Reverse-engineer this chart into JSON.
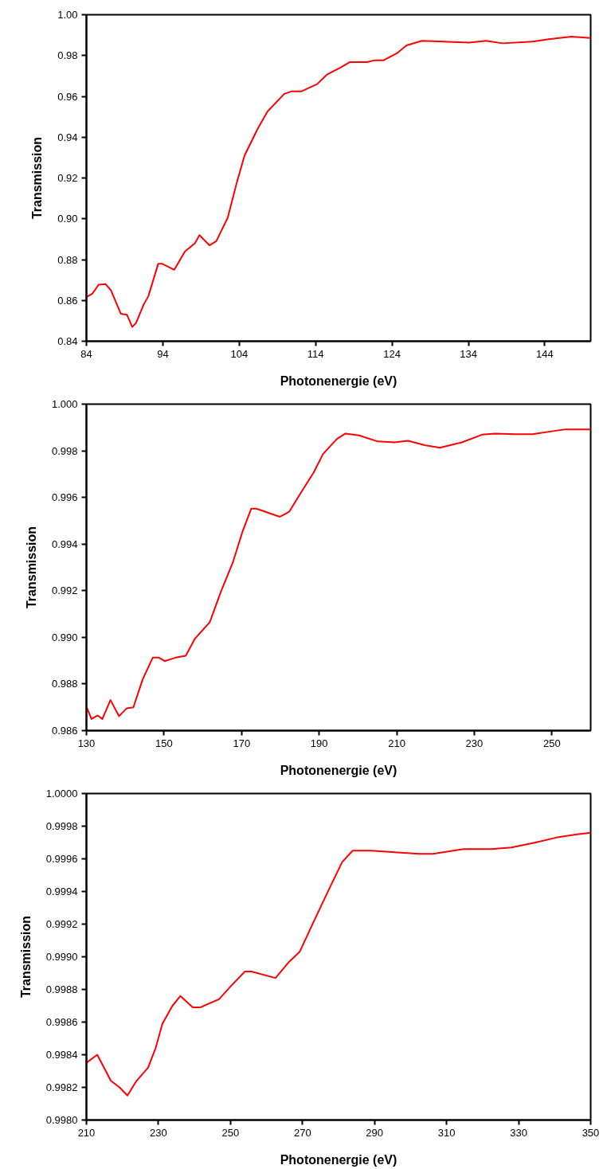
{
  "chart_data": [
    {
      "type": "line",
      "xlabel": "Photonenergie (eV)",
      "ylabel": "Transmission",
      "grid": false,
      "marker": "none",
      "line_style": "solid",
      "xlim": [
        84,
        150
      ],
      "xticks": [
        84,
        94,
        104,
        114,
        124,
        134,
        144
      ],
      "ylim": [
        0.84,
        1.0
      ],
      "yticks": [
        {
          "value": 0.84,
          "label": "0.84"
        },
        {
          "value": 0.86,
          "label": "0.86"
        },
        {
          "value": 0.88,
          "label": "0.88"
        },
        {
          "value": 0.9,
          "label": "0.90"
        },
        {
          "value": 0.92,
          "label": "0.92"
        },
        {
          "value": 0.94,
          "label": "0.94"
        },
        {
          "value": 0.96,
          "label": "0.96"
        },
        {
          "value": 0.98,
          "label": "0.98"
        },
        {
          "value": 1.0,
          "label": "1.00"
        }
      ],
      "series": [
        {
          "color": "#ff0000",
          "x": [
            84,
            84.8,
            85.6,
            86.5,
            87.2,
            88.5,
            89.3,
            90.0,
            90.5,
            91.5,
            92.1,
            93.4,
            93.9,
            95.5,
            96.9,
            98.2,
            98.8,
            100.1,
            101.0,
            102.5,
            103.7,
            104.7,
            106.4,
            107.7,
            109.9,
            110.8,
            112.1,
            114.2,
            115.5,
            117.2,
            118.5,
            120.7,
            121.8,
            122.9,
            124.6,
            125.9,
            127.9,
            130.7,
            134.1,
            136.3,
            138.5,
            142.4,
            144.5,
            147.5,
            150
          ],
          "values": [
            0.8616,
            0.8634,
            0.8677,
            0.868,
            0.865,
            0.8535,
            0.853,
            0.847,
            0.849,
            0.858,
            0.862,
            0.878,
            0.878,
            0.875,
            0.884,
            0.888,
            0.892,
            0.887,
            0.889,
            0.9006,
            0.918,
            0.931,
            0.944,
            0.9526,
            0.9612,
            0.9624,
            0.9624,
            0.966,
            0.9707,
            0.974,
            0.9768,
            0.9768,
            0.9777,
            0.9777,
            0.981,
            0.985,
            0.9872,
            0.9868,
            0.9863,
            0.9872,
            0.986,
            0.9868,
            0.988,
            0.9893,
            0.9886
          ]
        }
      ]
    },
    {
      "type": "line",
      "xlabel": "Photonenergie (eV)",
      "ylabel": "Transmission",
      "grid": false,
      "marker": "none",
      "line_style": "solid",
      "xlim": [
        130,
        260
      ],
      "xticks": [
        130,
        150,
        170,
        190,
        210,
        230,
        250
      ],
      "ylim": [
        0.986,
        1.0
      ],
      "yticks": [
        {
          "value": 0.986,
          "label": "0.986"
        },
        {
          "value": 0.988,
          "label": "0.988"
        },
        {
          "value": 0.99,
          "label": "0.990"
        },
        {
          "value": 0.992,
          "label": "0.992"
        },
        {
          "value": 0.994,
          "label": "0.994"
        },
        {
          "value": 0.996,
          "label": "0.996"
        },
        {
          "value": 0.998,
          "label": "0.998"
        },
        {
          "value": 1.0,
          "label": "1.000"
        }
      ],
      "series": [
        {
          "color": "#ff0000",
          "x": [
            130,
            131.3,
            132.9,
            134.1,
            136.2,
            138.4,
            140.4,
            142.1,
            144.5,
            147.1,
            148.7,
            150.2,
            153.0,
            155.6,
            158.0,
            161.8,
            164.7,
            167.7,
            170.3,
            172.5,
            173.8,
            179.9,
            182.3,
            185.1,
            188.6,
            191.0,
            194.6,
            196.8,
            200.3,
            205.1,
            209.4,
            212.9,
            217.2,
            221.1,
            226.8,
            232.0,
            235.4,
            240.6,
            245.0,
            251.0,
            253.6,
            260
          ],
          "values": [
            0.98703,
            0.9865,
            0.98665,
            0.9865,
            0.98731,
            0.98662,
            0.98696,
            0.987,
            0.9882,
            0.98913,
            0.98913,
            0.98898,
            0.98913,
            0.98921,
            0.98995,
            0.99065,
            0.99197,
            0.99319,
            0.99456,
            0.99552,
            0.99552,
            0.99517,
            0.99539,
            0.99615,
            0.99707,
            0.99786,
            0.99851,
            0.99874,
            0.99866,
            0.9984,
            0.99836,
            0.99843,
            0.99824,
            0.99813,
            0.99836,
            0.99869,
            0.99874,
            0.99871,
            0.99871,
            0.99886,
            0.99892,
            0.99892
          ]
        }
      ]
    },
    {
      "type": "line",
      "xlabel": "Photonenergie (eV)",
      "ylabel": "Transmission",
      "grid": false,
      "marker": "none",
      "line_style": "solid",
      "xlim": [
        210,
        350
      ],
      "xticks": [
        210,
        230,
        250,
        270,
        290,
        310,
        330,
        350
      ],
      "ylim": [
        0.998,
        1.0
      ],
      "yticks": [
        {
          "value": 0.998,
          "label": "0.9980"
        },
        {
          "value": 0.9982,
          "label": "0.9982"
        },
        {
          "value": 0.9984,
          "label": "0.9984"
        },
        {
          "value": 0.9986,
          "label": "0.9986"
        },
        {
          "value": 0.9988,
          "label": "0.9988"
        },
        {
          "value": 0.999,
          "label": "0.9990"
        },
        {
          "value": 0.9992,
          "label": "0.9992"
        },
        {
          "value": 0.9994,
          "label": "0.9994"
        },
        {
          "value": 0.9996,
          "label": "0.9996"
        },
        {
          "value": 0.9998,
          "label": "0.9998"
        },
        {
          "value": 1.0,
          "label": "1.0000"
        }
      ],
      "series": [
        {
          "color": "#ff0000",
          "x": [
            210,
            213.0,
            216.8,
            219.2,
            221.4,
            223.9,
            227.1,
            229.2,
            231.1,
            233.9,
            236.1,
            239.5,
            241.6,
            246.8,
            250.1,
            254.0,
            255.8,
            262.5,
            266.3,
            269.2,
            273.0,
            277.7,
            281.0,
            283.9,
            289.1,
            295.7,
            302.4,
            306.2,
            314.7,
            322.4,
            328.0,
            334.7,
            340.4,
            346.2,
            350
          ],
          "values": [
            0.99835,
            0.9984,
            0.99824,
            0.9982,
            0.99815,
            0.99824,
            0.99832,
            0.99844,
            0.99859,
            0.9987,
            0.99876,
            0.99869,
            0.99869,
            0.99874,
            0.99882,
            0.99891,
            0.99891,
            0.99887,
            0.99897,
            0.99903,
            0.99921,
            0.99943,
            0.99958,
            0.99965,
            0.99965,
            0.99964,
            0.99963,
            0.99963,
            0.99966,
            0.99966,
            0.99967,
            0.9997,
            0.99973,
            0.99975,
            0.99976
          ]
        }
      ]
    }
  ]
}
